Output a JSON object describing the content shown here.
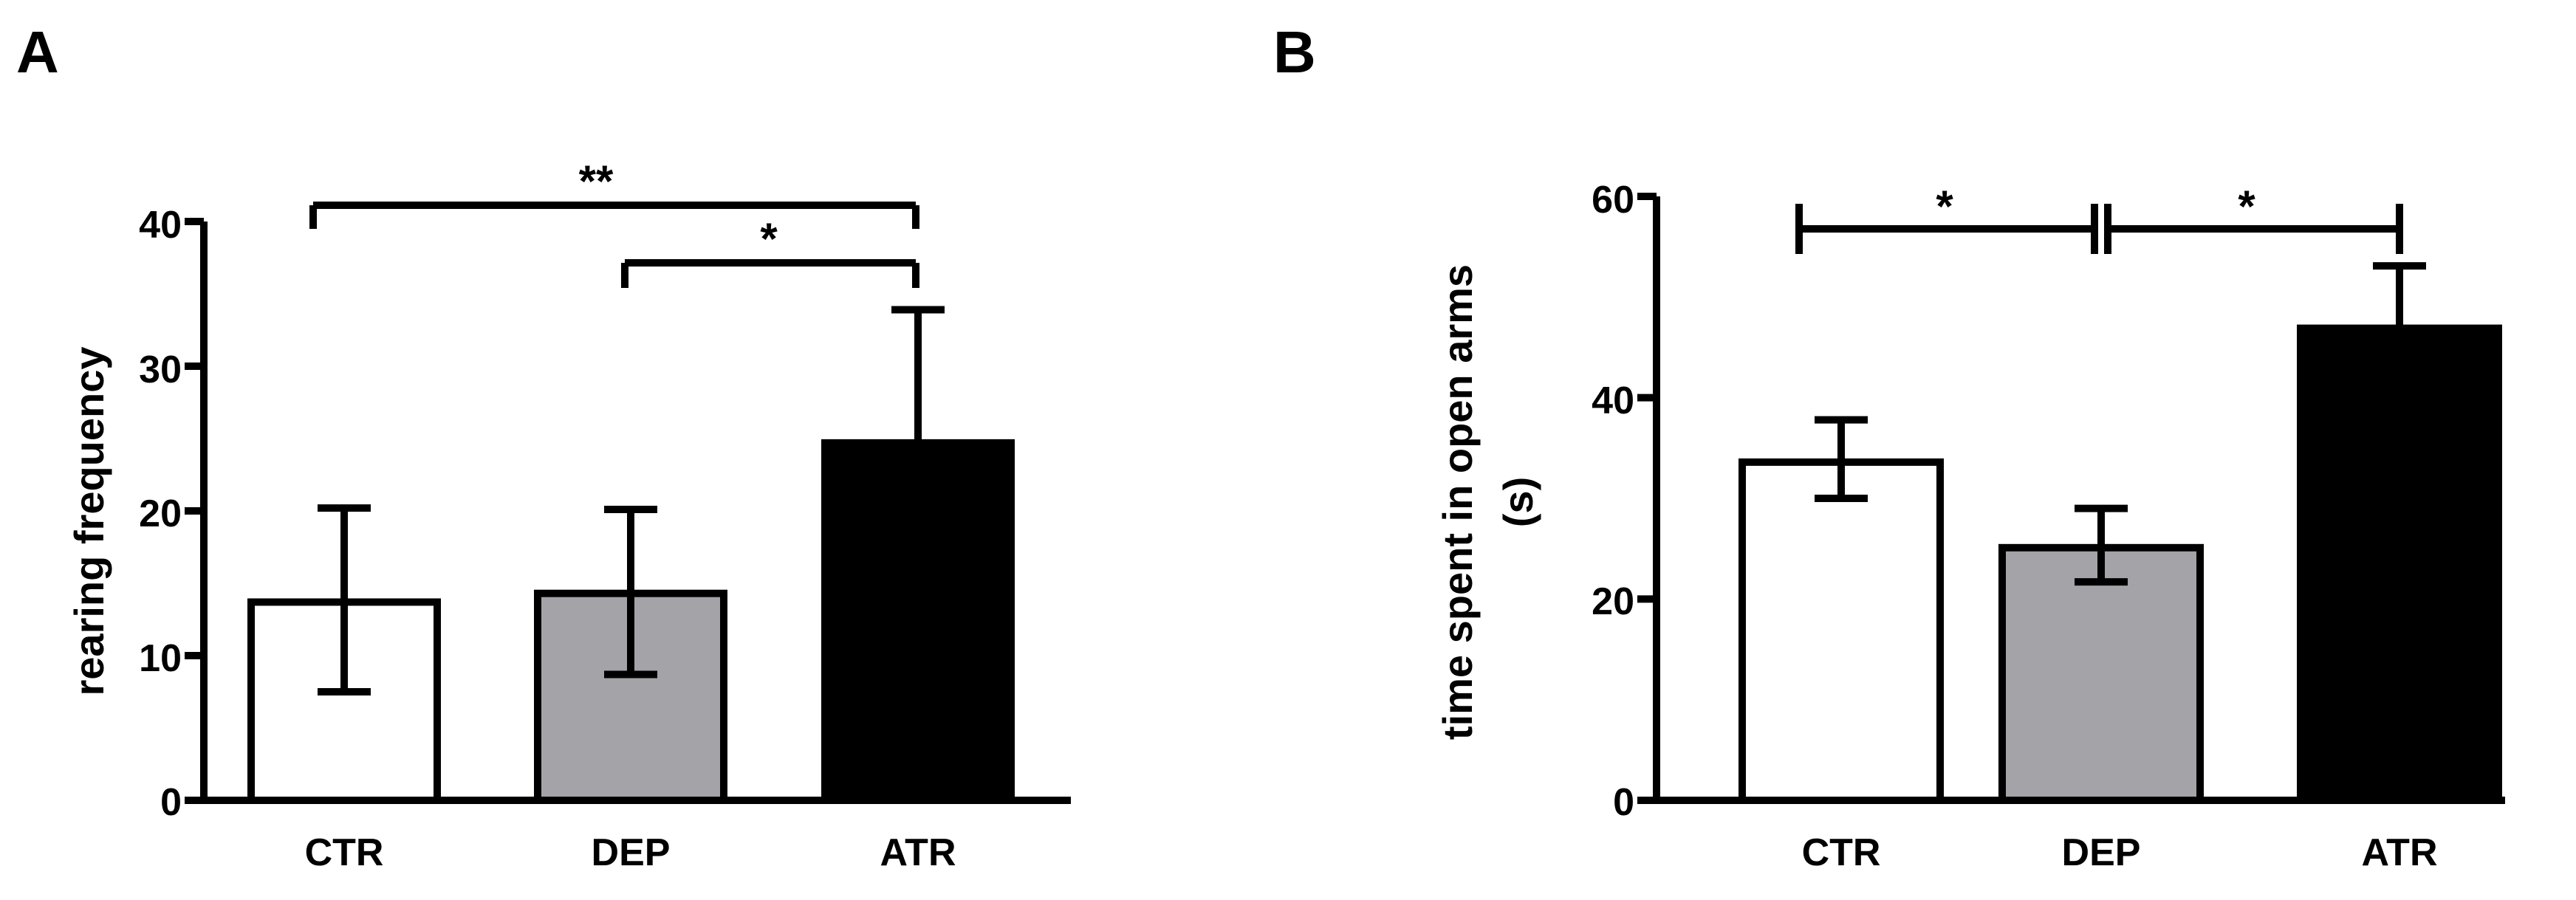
{
  "chart_data": [
    {
      "panel_label": "A",
      "type": "bar",
      "categories": [
        "CTR",
        "DEP",
        "ATR"
      ],
      "values": [
        13.7,
        14.3,
        24.7
      ],
      "error_upper": [
        20.2,
        20.1,
        33.9
      ],
      "error_lower": [
        7.5,
        8.7,
        null
      ],
      "ylabel": "rearing frequency",
      "xlabel": "",
      "ylim": [
        0,
        40
      ],
      "yticks": [
        "0",
        "10",
        "20",
        "30",
        "40"
      ],
      "grid": false,
      "bar_colors": [
        "#ffffff",
        "#a3a3a8",
        "#000000"
      ],
      "significance": [
        {
          "from": "CTR",
          "to": "ATR",
          "label": "**"
        },
        {
          "from": "DEP",
          "to": "ATR",
          "label": "*"
        }
      ]
    },
    {
      "panel_label": "B",
      "type": "bar",
      "categories": [
        "CTR",
        "DEP",
        "ATR"
      ],
      "values": [
        33.6,
        25.1,
        46.9
      ],
      "error_upper": [
        37.8,
        29.0,
        53.1
      ],
      "error_lower": [
        30.0,
        21.7,
        null
      ],
      "ylabel": "time spent in open arms",
      "ylabel2": "(s)",
      "xlabel": "",
      "ylim": [
        0,
        60
      ],
      "yticks": [
        "0",
        "20",
        "40",
        "60"
      ],
      "grid": false,
      "bar_colors": [
        "#ffffff",
        "#a3a3a8",
        "#000000"
      ],
      "significance": [
        {
          "from": "CTR",
          "to": "DEP",
          "label": "*"
        },
        {
          "from": "DEP",
          "to": "ATR",
          "label": "*"
        }
      ]
    }
  ]
}
